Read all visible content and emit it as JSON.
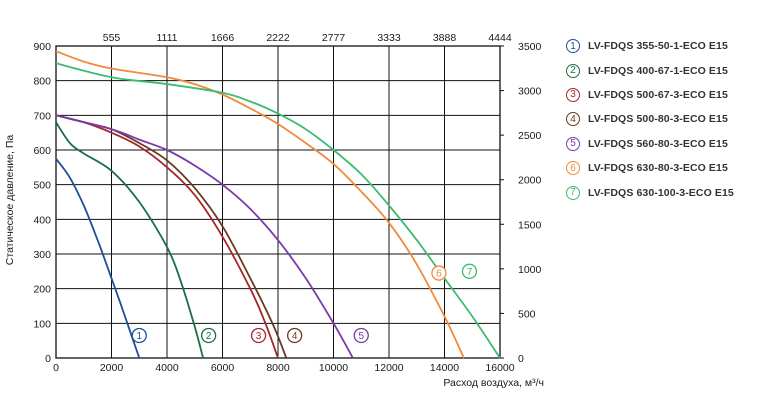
{
  "chart_data": {
    "type": "line",
    "title": "",
    "xlabel": "Расход воздуха, м³/ч",
    "ylabel": "Статическое давление, Па",
    "xlim": [
      0,
      16000
    ],
    "ylim": [
      0,
      900
    ],
    "x_ticks": [
      "0",
      "2000",
      "4000",
      "6000",
      "8000",
      "10000",
      "12000",
      "14000",
      "16000"
    ],
    "y_ticks": [
      "0",
      "100",
      "200",
      "300",
      "400",
      "500",
      "600",
      "700",
      "800",
      "900"
    ],
    "top_axis_ticks": [
      "555",
      "1111",
      "1666",
      "2222",
      "2777",
      "3333",
      "3888",
      "4444"
    ],
    "right_axis_ticks": [
      "0",
      "500",
      "1000",
      "1500",
      "2000",
      "2500",
      "3000",
      "3500"
    ],
    "grid": true,
    "legend_position": "right",
    "series": [
      {
        "name": "LV-FDQS 355-50-1-ECO E15",
        "marker": "1",
        "color": "#1f4e99",
        "x": [
          0,
          500,
          1000,
          1500,
          2000,
          2400,
          2700,
          3000
        ],
        "y": [
          575,
          520,
          440,
          340,
          230,
          140,
          70,
          0
        ]
      },
      {
        "name": "LV-FDQS 400-67-1-ECO E15",
        "marker": "2",
        "color": "#1b6e45",
        "x": [
          0,
          500,
          1000,
          2000,
          3000,
          4000,
          4500,
          5000,
          5300
        ],
        "y": [
          680,
          620,
          590,
          540,
          450,
          320,
          220,
          90,
          0
        ]
      },
      {
        "name": "LV-FDQS 500-67-3-ECO E15",
        "marker": "3",
        "color": "#a4262c",
        "x": [
          0,
          1000,
          2000,
          3000,
          4000,
          5000,
          6000,
          7000,
          7500,
          8000
        ],
        "y": [
          700,
          680,
          650,
          610,
          550,
          470,
          350,
          200,
          110,
          0
        ]
      },
      {
        "name": "LV-FDQS 500-80-3-ECO E15",
        "marker": "4",
        "color": "#6b3a1f",
        "x": [
          0,
          1000,
          2000,
          3000,
          4000,
          5000,
          6000,
          7000,
          7800,
          8300
        ],
        "y": [
          700,
          680,
          660,
          620,
          570,
          490,
          380,
          230,
          100,
          0
        ]
      },
      {
        "name": "LV-FDQS 560-80-3-ECO E15",
        "marker": "5",
        "color": "#7a3aa8",
        "x": [
          0,
          2000,
          3000,
          4000,
          5000,
          6000,
          7000,
          8000,
          9000,
          10000,
          10700
        ],
        "y": [
          700,
          660,
          630,
          600,
          555,
          500,
          430,
          340,
          230,
          100,
          0
        ]
      },
      {
        "name": "LV-FDQS 630-80-3-ECO E15",
        "marker": "6",
        "color": "#f08a3c",
        "x": [
          0,
          1000,
          2000,
          4000,
          5000,
          6000,
          7000,
          8000,
          9000,
          10000,
          11000,
          12000,
          13000,
          14000,
          14700
        ],
        "y": [
          885,
          855,
          835,
          810,
          790,
          760,
          720,
          675,
          620,
          560,
          480,
          390,
          270,
          120,
          0
        ]
      },
      {
        "name": "LV-FDQS 630-100-3-ECO E15",
        "marker": "7",
        "color": "#3dbb73",
        "x": [
          0,
          2000,
          4000,
          6000,
          7000,
          8000,
          9000,
          10000,
          11000,
          12000,
          13000,
          14000,
          15000,
          16000
        ],
        "y": [
          850,
          810,
          790,
          765,
          740,
          705,
          660,
          600,
          530,
          440,
          340,
          230,
          120,
          0
        ]
      }
    ]
  }
}
